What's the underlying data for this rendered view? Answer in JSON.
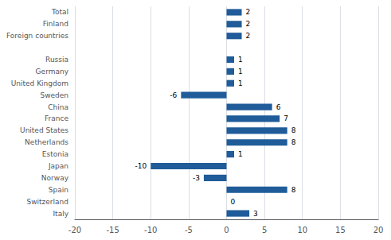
{
  "chart_data": {
    "type": "bar",
    "orientation": "horizontal",
    "categories": [
      "Italy",
      "Switzerland",
      "Spain",
      "Norway",
      "Japan",
      "Estonia",
      "Netherlands",
      "United States",
      "France",
      "China",
      "Sweden",
      "United Kingdom",
      "Germany",
      "Russia",
      null,
      "Foreign countries",
      "Finland",
      "Total"
    ],
    "values": [
      3,
      0,
      8,
      -3,
      -10,
      1,
      8,
      8,
      7,
      6,
      -6,
      1,
      1,
      1,
      null,
      2,
      2,
      2
    ],
    "color": "#1F5C99",
    "xlim": [
      -20,
      20
    ],
    "xticks": [
      -20,
      -15,
      -10,
      -5,
      0,
      5,
      10,
      15,
      20
    ],
    "grid": true,
    "data_labels": true
  }
}
